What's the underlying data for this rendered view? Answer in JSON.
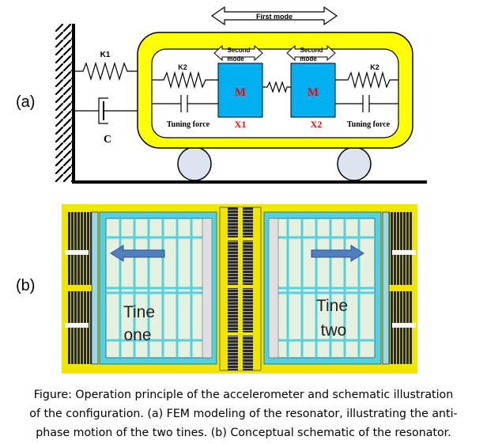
{
  "panel_a": {
    "label": "(a)",
    "first_mode": "First mode",
    "second_mode_left": [
      "Second",
      "mode"
    ],
    "second_mode_right": [
      "Second",
      "mode"
    ],
    "k1": "K1",
    "k2_left": "K2",
    "k2_right": "K2",
    "c": "C",
    "mass_left": "M",
    "mass_right": "M",
    "x1": "X1",
    "x2": "X2",
    "tuning_left": "Tuning force",
    "tuning_right": "Tuning force"
  },
  "panel_b": {
    "label": "(b)",
    "tine_one": [
      "Tine",
      "one"
    ],
    "tine_two": [
      "Tine",
      "two"
    ]
  },
  "caption": {
    "line1": "Figure: Operation principle of the accelerometer and schematic illustration",
    "line2": "of the configuration. (a) FEM modeling of the resonator, illustrating the anti-",
    "line3": "phase motion of the two tines. (b) Conceptual schematic of the resonator."
  },
  "colors": {
    "frame_yellow": "#ffff00",
    "mass_cyan": "#00b0f0",
    "mass_text_red": "#ff0000",
    "tine_cyan": "#55d0e0",
    "fem_yellow": "#f2e600",
    "arrow_blue": "#4f7fbf"
  }
}
